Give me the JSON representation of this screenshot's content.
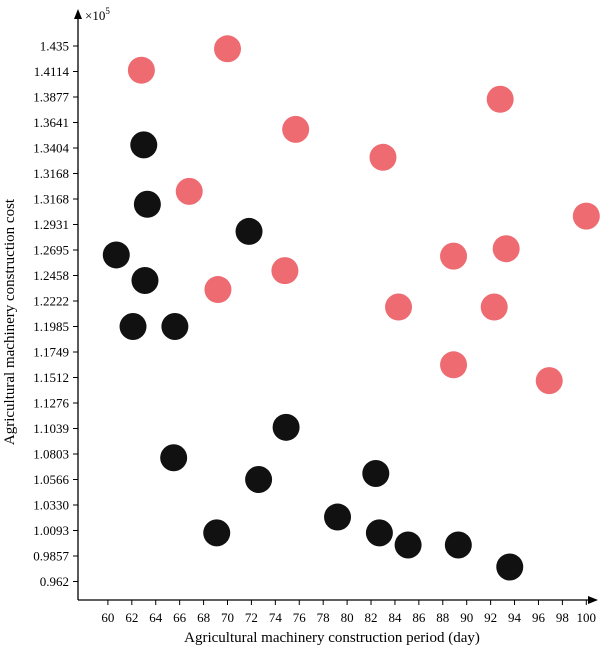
{
  "chart_data": {
    "type": "scatter",
    "xlabel": "Agricultural machinery construction period (day)",
    "ylabel": "Agricultural machinery construction cost",
    "y_multiplier": "×10",
    "y_multiplier_exp": "5",
    "x_ticks": [
      "60",
      "62",
      "64",
      "66",
      "68",
      "70",
      "72",
      "74",
      "76",
      "78",
      "80",
      "82",
      "84",
      "86",
      "88",
      "90",
      "92",
      "94",
      "96",
      "98",
      "100"
    ],
    "y_ticks": [
      "1.435",
      "1.4114",
      "1.3877",
      "1.3641",
      "1.3404",
      "1.3168",
      "1.3168",
      "1.2931",
      "1.2695",
      "1.2458",
      "1.2222",
      "1.1985",
      "1.1749",
      "1.1512",
      "1.1276",
      "1.1039",
      "1.0803",
      "1.0566",
      "1.0330",
      "1.0093",
      "0.9857",
      "0.962"
    ],
    "xlim": [
      57.5,
      101
    ],
    "colors": {
      "red": "#ee6b72",
      "black": "#111111"
    },
    "series": [
      {
        "color_key": "red",
        "points": [
          {
            "x": 62.8,
            "y": 1.4126
          },
          {
            "x": 70.0,
            "y": 1.4324
          },
          {
            "x": 92.8,
            "y": 1.3856
          },
          {
            "x": 75.7,
            "y": 1.3577
          },
          {
            "x": 83.0,
            "y": 1.3318
          },
          {
            "x": 66.8,
            "y": 1.3085
          },
          {
            "x": 100.0,
            "y": 1.297
          },
          {
            "x": 93.3,
            "y": 1.2707
          },
          {
            "x": 88.9,
            "y": 1.2638
          },
          {
            "x": 74.8,
            "y": 1.2503
          },
          {
            "x": 69.2,
            "y": 1.2328
          },
          {
            "x": 84.3,
            "y": 1.2166
          },
          {
            "x": 92.3,
            "y": 1.2166
          },
          {
            "x": 88.9,
            "y": 1.163
          },
          {
            "x": 96.9,
            "y": 1.1483
          }
        ]
      },
      {
        "color_key": "black",
        "points": [
          {
            "x": 63.0,
            "y": 1.3433
          },
          {
            "x": 63.3,
            "y": 1.3025
          },
          {
            "x": 71.8,
            "y": 1.2867
          },
          {
            "x": 60.7,
            "y": 1.2649
          },
          {
            "x": 63.1,
            "y": 1.2412
          },
          {
            "x": 62.1,
            "y": 1.1985
          },
          {
            "x": 65.6,
            "y": 1.1985
          },
          {
            "x": 74.9,
            "y": 1.105
          },
          {
            "x": 65.5,
            "y": 1.0768
          },
          {
            "x": 72.6,
            "y": 1.0566
          },
          {
            "x": 82.4,
            "y": 1.0622
          },
          {
            "x": 79.2,
            "y": 1.0218
          },
          {
            "x": 69.1,
            "y": 1.0071
          },
          {
            "x": 82.7,
            "y": 1.0071
          },
          {
            "x": 85.1,
            "y": 0.9959
          },
          {
            "x": 89.3,
            "y": 0.9959
          },
          {
            "x": 93.6,
            "y": 0.9755
          }
        ]
      }
    ]
  }
}
